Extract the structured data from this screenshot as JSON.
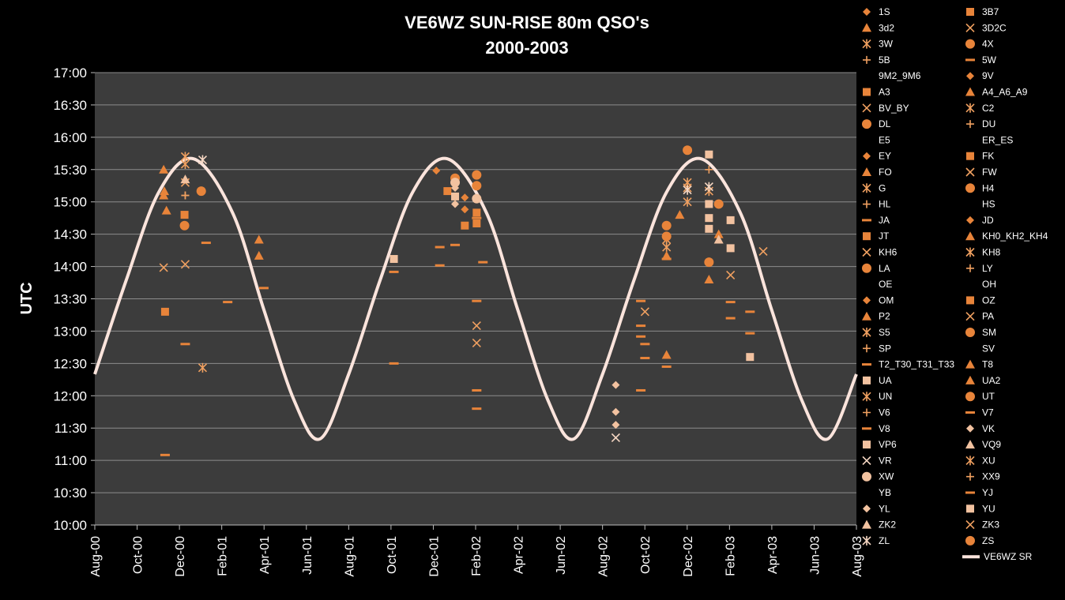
{
  "chart_data": {
    "type": "scatter",
    "title": [
      "VE6WZ SUN-RISE 80m QSO's",
      "2000-2003"
    ],
    "ylabel": "UTC",
    "xlabel": "",
    "x_ticks": [
      "Aug-00",
      "Oct-00",
      "Dec-00",
      "Feb-01",
      "Apr-01",
      "Jun-01",
      "Aug-01",
      "Oct-01",
      "Dec-01",
      "Feb-02",
      "Apr-02",
      "Jun-02",
      "Aug-02",
      "Oct-02",
      "Dec-02",
      "Feb-03",
      "Apr-03",
      "Jun-03",
      "Aug-03"
    ],
    "y_ticks": [
      "10:00",
      "10:30",
      "11:00",
      "11:30",
      "12:00",
      "12:30",
      "13:00",
      "13:30",
      "14:00",
      "14:30",
      "15:00",
      "15:30",
      "16:00",
      "16:30",
      "17:00"
    ],
    "xlim": [
      "2000-08-01",
      "2003-08-01"
    ],
    "ylim": [
      "10:00",
      "17:00"
    ],
    "grid": "horizontal",
    "legend_position": "right",
    "colors": {
      "background": "#000000",
      "plot_area": "#3c3c3c",
      "gridline": "#8c8c8c",
      "marker": "#e8843a",
      "marker_light": "#f2c2a0",
      "sunrise_line": "#fbe4dc"
    },
    "sunrise_curve": {
      "name": "VE6WZ SR",
      "type": "line",
      "points": [
        [
          "2000-08-01",
          "12:20"
        ],
        [
          "2000-09-15",
          "13:47"
        ],
        [
          "2000-11-01",
          "15:09"
        ],
        [
          "2000-12-21",
          "15:40"
        ],
        [
          "2001-02-15",
          "14:50"
        ],
        [
          "2001-04-01",
          "13:20"
        ],
        [
          "2001-05-15",
          "11:55"
        ],
        [
          "2001-06-21",
          "11:20"
        ],
        [
          "2001-08-01",
          "12:20"
        ],
        [
          "2001-09-15",
          "13:47"
        ],
        [
          "2001-11-01",
          "15:09"
        ],
        [
          "2001-12-21",
          "15:40"
        ],
        [
          "2002-02-15",
          "14:50"
        ],
        [
          "2002-04-01",
          "13:20"
        ],
        [
          "2002-05-15",
          "11:55"
        ],
        [
          "2002-06-21",
          "11:20"
        ],
        [
          "2002-08-01",
          "12:20"
        ],
        [
          "2002-09-15",
          "13:47"
        ],
        [
          "2002-11-01",
          "15:09"
        ],
        [
          "2002-12-21",
          "15:40"
        ],
        [
          "2003-02-15",
          "14:50"
        ],
        [
          "2003-04-01",
          "13:20"
        ],
        [
          "2003-05-15",
          "11:55"
        ],
        [
          "2003-06-21",
          "11:20"
        ],
        [
          "2003-08-01",
          "12:20"
        ]
      ]
    },
    "series": [
      {
        "name": "1S",
        "shape": "diamond",
        "points": []
      },
      {
        "name": "3B7",
        "shape": "square",
        "points": [
          [
            "2000-11-10",
            "13:18"
          ]
        ]
      },
      {
        "name": "3d2",
        "shape": "triangle",
        "points": [
          [
            "2000-11-08",
            "15:30"
          ],
          [
            "2000-11-08",
            "15:06"
          ],
          [
            "2001-03-25",
            "14:25"
          ]
        ]
      },
      {
        "name": "3D2C",
        "shape": "x",
        "points": []
      },
      {
        "name": "3W",
        "shape": "asterisk",
        "points": [
          [
            "2000-12-09",
            "15:35"
          ]
        ]
      },
      {
        "name": "4X",
        "shape": "circle",
        "points": [
          [
            "2001-01-01",
            "15:10"
          ],
          [
            "2000-12-08",
            "14:38"
          ]
        ]
      },
      {
        "name": "5B",
        "shape": "plus",
        "points": [
          [
            "2000-12-09",
            "15:06"
          ]
        ]
      },
      {
        "name": "5W",
        "shape": "dash",
        "points": []
      },
      {
        "name": "9M2_9M6",
        "shape": "none",
        "points": []
      },
      {
        "name": "9V",
        "shape": "diamond",
        "points": []
      },
      {
        "name": "A3",
        "shape": "square",
        "points": [
          [
            "2000-12-08",
            "14:48"
          ]
        ]
      },
      {
        "name": "A4_A6_A9",
        "shape": "triangle",
        "points": [
          [
            "2000-11-09",
            "15:10"
          ],
          [
            "2002-11-20",
            "14:48"
          ],
          [
            "2003-01-15",
            "14:30"
          ]
        ]
      },
      {
        "name": "BV_BY",
        "shape": "x",
        "points": [
          [
            "2000-11-08",
            "13:59"
          ],
          [
            "2000-12-09",
            "14:02"
          ],
          [
            "2002-10-01",
            "13:18"
          ]
        ]
      },
      {
        "name": "C2",
        "shape": "asterisk",
        "points": [
          [
            "2001-01-03",
            "12:26"
          ]
        ]
      },
      {
        "name": "DL",
        "shape": "circle",
        "points": [
          [
            "2002-12-01",
            "15:48"
          ]
        ]
      },
      {
        "name": "DU",
        "shape": "plus",
        "points": []
      },
      {
        "name": "E5",
        "shape": "none",
        "points": []
      },
      {
        "name": "ER_ES",
        "shape": "none",
        "points": []
      },
      {
        "name": "EY",
        "shape": "diamond",
        "points": [
          [
            "2001-12-05",
            "15:29"
          ]
        ]
      },
      {
        "name": "FK",
        "shape": "square",
        "points": [
          [
            "2001-12-21",
            "15:10"
          ]
        ]
      },
      {
        "name": "FO",
        "shape": "triangle",
        "points": [
          [
            "2000-11-12",
            "14:52"
          ],
          [
            "2003-01-01",
            "13:48"
          ]
        ]
      },
      {
        "name": "FW",
        "shape": "x",
        "points": [
          [
            "2000-12-09",
            "15:18"
          ],
          [
            "2003-02-01",
            "13:52"
          ]
        ]
      },
      {
        "name": "G",
        "shape": "asterisk",
        "points": [
          [
            "2000-12-09",
            "15:42"
          ],
          [
            "2002-12-01",
            "15:18"
          ],
          [
            "2002-12-01",
            "15:00"
          ]
        ]
      },
      {
        "name": "H4",
        "shape": "circle",
        "points": [
          [
            "2003-01-15",
            "14:58"
          ]
        ]
      },
      {
        "name": "HL",
        "shape": "plus",
        "points": [
          [
            "2000-12-09",
            "15:06"
          ]
        ]
      },
      {
        "name": "HS",
        "shape": "none",
        "points": []
      },
      {
        "name": "JA",
        "shape": "dash",
        "points": [
          [
            "2000-11-10",
            "11:05"
          ],
          [
            "2000-12-09",
            "12:48"
          ],
          [
            "2001-01-08",
            "14:22"
          ],
          [
            "2001-02-08",
            "13:27"
          ],
          [
            "2001-10-05",
            "12:30"
          ],
          [
            "2001-12-10",
            "14:18"
          ],
          [
            "2001-12-10",
            "14:01"
          ],
          [
            "2002-01-01",
            "14:20"
          ],
          [
            "2002-02-01",
            "13:28"
          ],
          [
            "2002-02-01",
            "12:05"
          ],
          [
            "2002-02-01",
            "11:48"
          ],
          [
            "2002-10-01",
            "12:48"
          ],
          [
            "2002-10-01",
            "12:35"
          ],
          [
            "2003-03-01",
            "13:18"
          ],
          [
            "2003-02-01",
            "13:12"
          ]
        ]
      },
      {
        "name": "JD",
        "shape": "diamond",
        "points": [
          [
            "2002-01-15",
            "15:04"
          ]
        ]
      },
      {
        "name": "JT",
        "shape": "square",
        "points": [
          [
            "2002-02-01",
            "14:50"
          ],
          [
            "2002-02-01",
            "14:40"
          ]
        ]
      },
      {
        "name": "KH0_KH2_KH4",
        "shape": "triangle",
        "points": [
          [
            "2001-03-25",
            "14:10"
          ]
        ]
      },
      {
        "name": "KH6",
        "shape": "x",
        "points": [
          [
            "2002-02-01",
            "13:05"
          ],
          [
            "2002-02-01",
            "12:49"
          ]
        ]
      },
      {
        "name": "KH8",
        "shape": "asterisk",
        "points": [
          [
            "2002-11-01",
            "14:25"
          ]
        ]
      },
      {
        "name": "LA",
        "shape": "circle",
        "points": [
          [
            "2002-01-01",
            "15:22"
          ],
          [
            "2003-01-01",
            "14:04"
          ]
        ]
      },
      {
        "name": "LY",
        "shape": "plus",
        "points": []
      },
      {
        "name": "OE",
        "shape": "none",
        "points": []
      },
      {
        "name": "OH",
        "shape": "none",
        "points": []
      },
      {
        "name": "OM",
        "shape": "diamond",
        "points": [
          [
            "2002-01-15",
            "14:53"
          ]
        ]
      },
      {
        "name": "OZ",
        "shape": "square",
        "points": [
          [
            "2002-01-15",
            "14:38"
          ]
        ]
      },
      {
        "name": "P2",
        "shape": "triangle",
        "points": [
          [
            "2002-11-01",
            "12:38"
          ]
        ]
      },
      {
        "name": "PA",
        "shape": "x",
        "points": [
          [
            "2003-03-20",
            "14:14"
          ]
        ]
      },
      {
        "name": "S5",
        "shape": "asterisk",
        "points": [
          [
            "2002-11-01",
            "14:18"
          ]
        ]
      },
      {
        "name": "SM",
        "shape": "circle",
        "points": [
          [
            "2002-02-01",
            "15:25"
          ],
          [
            "2002-02-01",
            "15:15"
          ]
        ]
      },
      {
        "name": "SP",
        "shape": "plus",
        "points": [
          [
            "2003-01-01",
            "15:30"
          ]
        ]
      },
      {
        "name": "SV",
        "shape": "none",
        "points": []
      },
      {
        "name": "T2_T30_T31_T33",
        "shape": "dash",
        "points": [
          [
            "2002-09-25",
            "13:28"
          ],
          [
            "2002-09-25",
            "13:05"
          ],
          [
            "2002-09-25",
            "12:55"
          ],
          [
            "2002-09-25",
            "12:05"
          ],
          [
            "2002-11-01",
            "12:27"
          ],
          [
            "2003-02-01",
            "13:27"
          ],
          [
            "2003-03-01",
            "12:58"
          ]
        ]
      },
      {
        "name": "T8",
        "shape": "triangle",
        "points": [
          [
            "2002-11-01",
            "14:10"
          ]
        ]
      },
      {
        "name": "UA",
        "shape": "square",
        "points": [
          [
            "2003-01-01",
            "14:58"
          ],
          [
            "2003-01-01",
            "14:45"
          ],
          [
            "2003-01-01",
            "14:35"
          ]
        ]
      },
      {
        "name": "UA2",
        "shape": "triangle",
        "points": []
      },
      {
        "name": "UN",
        "shape": "asterisk",
        "points": [
          [
            "2003-01-01",
            "15:10"
          ]
        ]
      },
      {
        "name": "UT",
        "shape": "circle",
        "points": [
          [
            "2002-11-01",
            "14:38"
          ],
          [
            "2002-11-01",
            "14:28"
          ]
        ]
      },
      {
        "name": "V6",
        "shape": "plus",
        "points": []
      },
      {
        "name": "V7",
        "shape": "dash",
        "points": [
          [
            "2001-04-01",
            "13:40"
          ],
          [
            "2002-02-10",
            "14:04"
          ]
        ]
      },
      {
        "name": "V8",
        "shape": "dash",
        "points": [
          [
            "2002-11-01",
            "14:07"
          ]
        ]
      },
      {
        "name": "VK",
        "shape": "diamond",
        "points": [
          [
            "2002-08-20",
            "12:10"
          ],
          [
            "2002-08-20",
            "11:45"
          ],
          [
            "2002-08-20",
            "11:33"
          ]
        ]
      },
      {
        "name": "VP6",
        "shape": "square",
        "points": [
          [
            "2003-01-01",
            "15:44"
          ],
          [
            "2003-02-01",
            "14:43"
          ],
          [
            "2003-02-01",
            "14:17"
          ],
          [
            "2003-03-01",
            "12:36"
          ]
        ]
      },
      {
        "name": "VQ9",
        "shape": "triangle",
        "points": [
          [
            "2000-12-09",
            "15:21"
          ]
        ]
      },
      {
        "name": "VR",
        "shape": "x",
        "points": [
          [
            "2002-08-20",
            "11:21"
          ]
        ]
      },
      {
        "name": "XU",
        "shape": "asterisk",
        "points": [
          [
            "2002-12-01",
            "15:13"
          ]
        ]
      },
      {
        "name": "XW",
        "shape": "circle",
        "points": [
          [
            "2002-01-01",
            "15:18"
          ],
          [
            "2002-02-01",
            "15:03"
          ]
        ]
      },
      {
        "name": "XX9",
        "shape": "plus",
        "points": []
      },
      {
        "name": "YB",
        "shape": "none",
        "points": []
      },
      {
        "name": "YJ",
        "shape": "dash",
        "points": [
          [
            "2001-10-05",
            "13:55"
          ],
          [
            "2002-02-01",
            "14:45"
          ]
        ]
      },
      {
        "name": "YL",
        "shape": "diamond",
        "points": [
          [
            "2002-01-01",
            "15:13"
          ],
          [
            "2002-01-01",
            "14:58"
          ]
        ]
      },
      {
        "name": "YU",
        "shape": "square",
        "points": [
          [
            "2001-10-05",
            "14:07"
          ],
          [
            "2002-01-01",
            "15:05"
          ]
        ]
      },
      {
        "name": "ZK2",
        "shape": "triangle",
        "points": [
          [
            "2003-01-15",
            "14:25"
          ]
        ]
      },
      {
        "name": "ZK3",
        "shape": "x",
        "points": []
      },
      {
        "name": "ZL",
        "shape": "asterisk",
        "points": [
          [
            "2001-01-03",
            "15:39"
          ],
          [
            "2002-12-01",
            "15:11"
          ],
          [
            "2003-01-01",
            "15:14"
          ]
        ]
      },
      {
        "name": "ZS",
        "shape": "circle",
        "points": []
      }
    ]
  }
}
